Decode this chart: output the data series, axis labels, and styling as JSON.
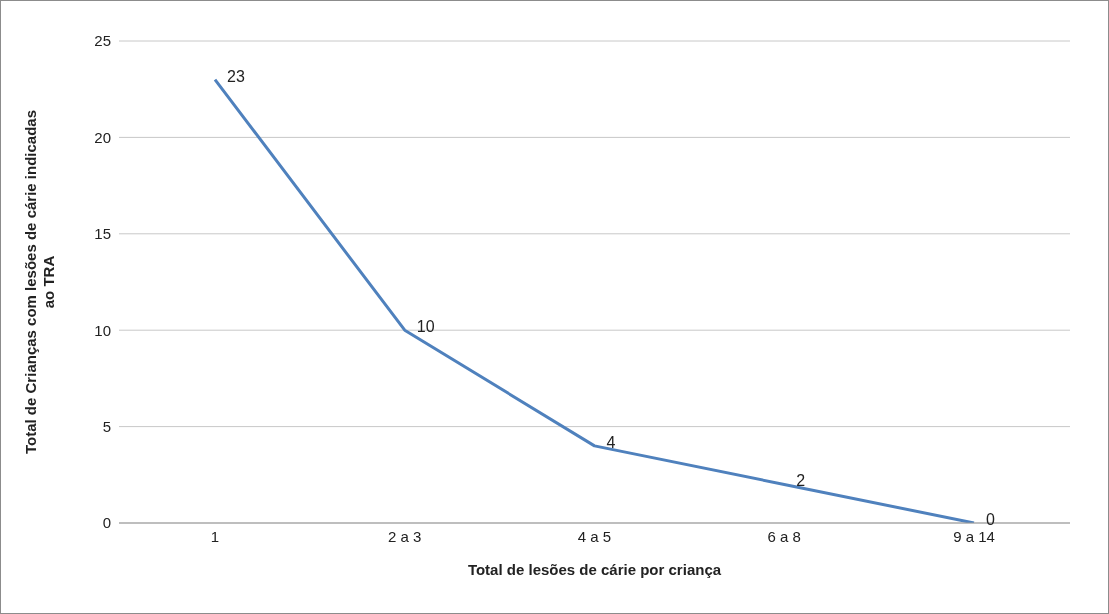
{
  "chart_data": {
    "type": "line",
    "xlabel": "Total de lesões de cárie por criança",
    "ylabel": "Total de Crianças com lesões de cárie indicadas ao TRA",
    "categories": [
      "1",
      "2 a 3",
      "4 a 5",
      "6 a 8",
      "9 a 14"
    ],
    "series": [
      {
        "color": "#4f81bd",
        "values": [
          23,
          10,
          4,
          2,
          0
        ]
      }
    ],
    "ylim": [
      0,
      25
    ],
    "yticks": [
      0,
      5,
      10,
      15,
      20,
      25
    ],
    "grid": "y",
    "marker": "none",
    "line_style": "solid",
    "data_labels": true
  }
}
